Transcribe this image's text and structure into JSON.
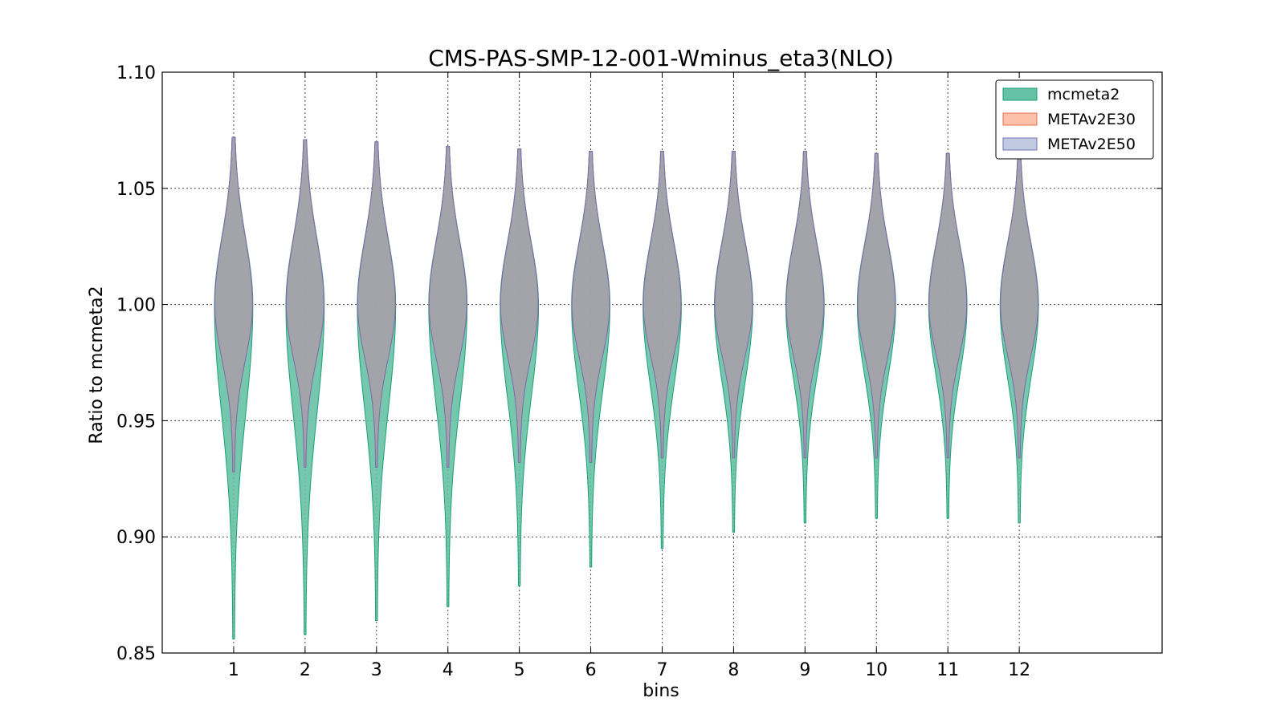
{
  "chart_data": {
    "type": "violin",
    "title": "CMS-PAS-SMP-12-001-Wminus_eta3(NLO)",
    "xlabel": "bins",
    "ylabel": "Ratio to mcmeta2",
    "categories": [
      "1",
      "2",
      "3",
      "4",
      "5",
      "6",
      "7",
      "8",
      "9",
      "10",
      "11",
      "12"
    ],
    "x_range": [
      0,
      14
    ],
    "ylim": [
      0.85,
      1.1
    ],
    "yticks": [
      "0.85",
      "0.90",
      "0.95",
      "1.00",
      "1.05",
      "1.10"
    ],
    "grid": true,
    "legend_position": "top-right",
    "series": [
      {
        "name": "mcmeta2",
        "color": "#66c2a5",
        "edge": "#1b9e77",
        "min": [
          0.856,
          0.858,
          0.864,
          0.87,
          0.879,
          0.887,
          0.895,
          0.902,
          0.906,
          0.908,
          0.908,
          0.906
        ],
        "max": [
          1.072,
          1.071,
          1.07,
          1.068,
          1.067,
          1.066,
          1.066,
          1.066,
          1.066,
          1.065,
          1.065,
          1.065
        ],
        "center": [
          1.0,
          1.0,
          1.0,
          1.0,
          1.0,
          1.0,
          1.0,
          1.0,
          1.0,
          1.0,
          1.0,
          1.0
        ]
      },
      {
        "name": "METAv2E30",
        "color": "#fc8d62",
        "edge": "#e7704f",
        "min": [
          0.928,
          0.93,
          0.93,
          0.93,
          0.932,
          0.932,
          0.934,
          0.934,
          0.934,
          0.934,
          0.934,
          0.934
        ],
        "max": [
          1.072,
          1.071,
          1.07,
          1.068,
          1.067,
          1.066,
          1.066,
          1.066,
          1.066,
          1.065,
          1.065,
          1.065
        ],
        "center": [
          1.0,
          1.0,
          1.0,
          1.0,
          1.0,
          1.0,
          1.0,
          1.0,
          1.0,
          1.0,
          1.0,
          1.0
        ]
      },
      {
        "name": "METAv2E50",
        "color": "#8da0cb",
        "edge": "#7570b3",
        "min": [
          0.928,
          0.93,
          0.93,
          0.93,
          0.932,
          0.932,
          0.934,
          0.934,
          0.934,
          0.934,
          0.934,
          0.934
        ],
        "max": [
          1.072,
          1.071,
          1.07,
          1.068,
          1.067,
          1.066,
          1.066,
          1.066,
          1.066,
          1.065,
          1.065,
          1.065
        ],
        "center": [
          1.0,
          1.0,
          1.0,
          1.0,
          1.0,
          1.0,
          1.0,
          1.0,
          1.0,
          1.0,
          1.0,
          1.0
        ]
      }
    ]
  }
}
